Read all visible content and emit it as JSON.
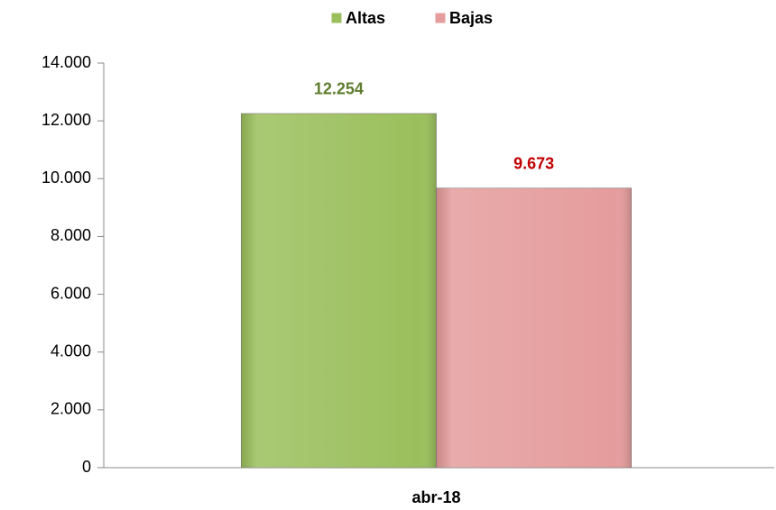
{
  "chart_data": {
    "type": "bar",
    "categories": [
      "abr-18"
    ],
    "series": [
      {
        "name": "Altas",
        "color": "#9bbf5c",
        "label_color": "#5e7d2e",
        "values": [
          12254
        ],
        "value_labels": [
          "12.254"
        ]
      },
      {
        "name": "Bajas",
        "color": "#e59c9c",
        "label_color": "#c00000",
        "values": [
          9673
        ],
        "value_labels": [
          "9.673"
        ]
      }
    ],
    "ylim": [
      0,
      14000
    ],
    "yticks": [
      0,
      {
        "value": 2000,
        "label": "2.000"
      },
      {
        "value": 4000,
        "label": "4.000"
      },
      {
        "value": 6000,
        "label": "6.000"
      },
      {
        "value": 8000,
        "label": "8.000"
      },
      {
        "value": 10000,
        "label": "10.000"
      },
      {
        "value": 12000,
        "label": "12.000"
      },
      {
        "value": 14000,
        "label": "14.000"
      }
    ],
    "legend": "top",
    "grid": false
  }
}
